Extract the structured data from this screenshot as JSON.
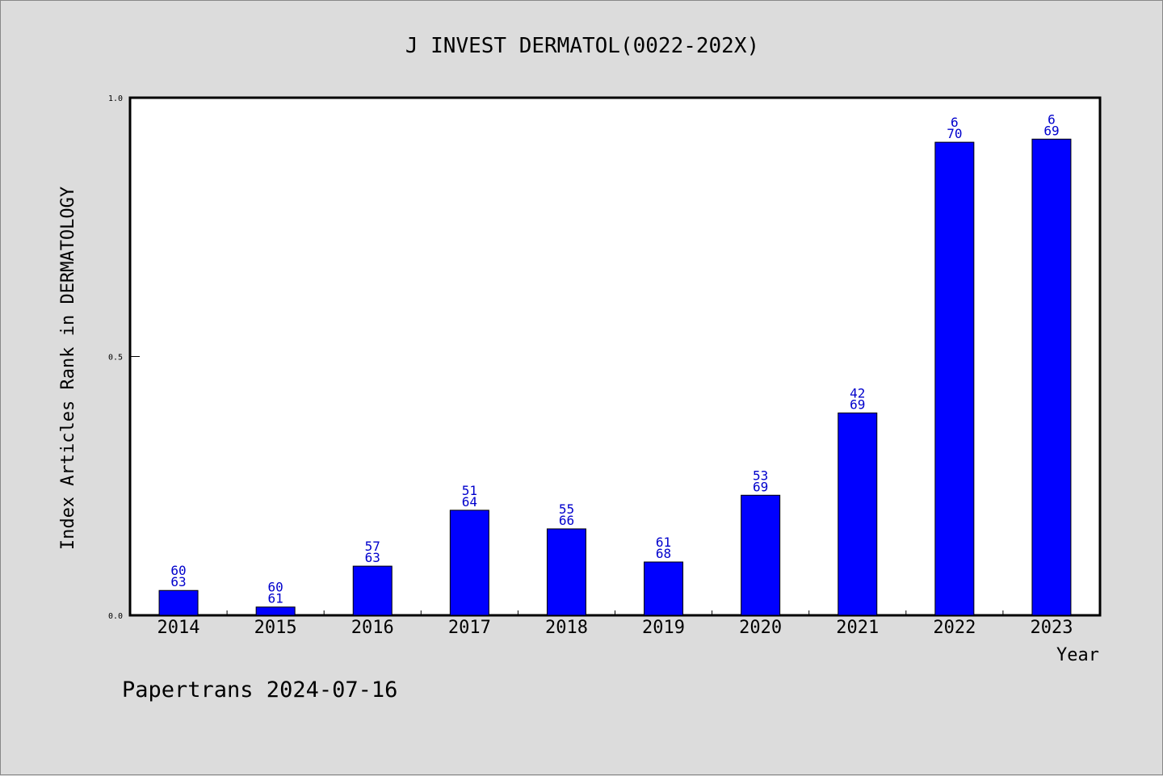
{
  "chart_data": {
    "type": "bar",
    "title": "J INVEST DERMATOL(0022-202X)",
    "xlabel": "Year",
    "ylabel": "Index Articles Rank in DERMATOLOGY",
    "ylim": [
      0,
      1.0
    ],
    "yticks": [
      "0.0",
      "0.5",
      "1.0"
    ],
    "categories": [
      "2014",
      "2015",
      "2016",
      "2017",
      "2018",
      "2019",
      "2020",
      "2021",
      "2022",
      "2023"
    ],
    "values": [
      0.048,
      0.016,
      0.095,
      0.203,
      0.167,
      0.103,
      0.232,
      0.391,
      0.914,
      0.92
    ],
    "labels_top": [
      "60",
      "60",
      "57",
      "51",
      "55",
      "61",
      "53",
      "42",
      "6",
      "6"
    ],
    "labels_bottom": [
      "63",
      "61",
      "63",
      "64",
      "66",
      "68",
      "69",
      "69",
      "70",
      "69"
    ],
    "bar_color": "#0000ff",
    "label_color": "#0000cc",
    "grid": false
  },
  "footer": "Papertrans 2024-07-16"
}
